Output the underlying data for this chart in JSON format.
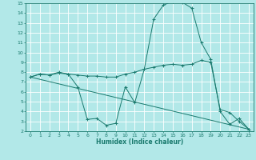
{
  "xlabel": "Humidex (Indice chaleur)",
  "ylabel": "",
  "bg_color": "#b2e8e8",
  "grid_color": "#ffffff",
  "line_color": "#1a7a6e",
  "xlim": [
    -0.5,
    23.5
  ],
  "ylim": [
    2,
    15
  ],
  "xticks": [
    0,
    1,
    2,
    3,
    4,
    5,
    6,
    7,
    8,
    9,
    10,
    11,
    12,
    13,
    14,
    15,
    16,
    17,
    18,
    19,
    20,
    21,
    22,
    23
  ],
  "yticks": [
    2,
    3,
    4,
    5,
    6,
    7,
    8,
    9,
    10,
    11,
    12,
    13,
    14,
    15
  ],
  "line1_x": [
    0,
    1,
    2,
    3,
    4,
    5,
    6,
    7,
    8,
    9,
    10,
    11,
    12,
    13,
    14,
    15,
    16,
    17,
    18,
    19,
    20,
    21,
    22,
    23
  ],
  "line1_y": [
    7.5,
    7.8,
    7.7,
    8.0,
    7.8,
    6.5,
    3.2,
    3.3,
    2.6,
    2.8,
    6.5,
    4.9,
    8.3,
    13.4,
    14.8,
    15.2,
    15.1,
    14.5,
    11.0,
    9.3,
    4.0,
    2.7,
    3.3,
    2.2
  ],
  "line2_x": [
    0,
    1,
    2,
    3,
    4,
    5,
    6,
    7,
    8,
    9,
    10,
    11,
    12,
    13,
    14,
    15,
    16,
    17,
    18,
    19,
    20,
    21,
    22,
    23
  ],
  "line2_y": [
    7.5,
    7.8,
    7.7,
    7.9,
    7.8,
    7.7,
    7.6,
    7.6,
    7.5,
    7.5,
    7.8,
    8.0,
    8.3,
    8.5,
    8.7,
    8.8,
    8.7,
    8.8,
    9.2,
    9.0,
    4.2,
    3.9,
    3.0,
    2.2
  ],
  "line3_x": [
    0,
    23
  ],
  "line3_y": [
    7.5,
    2.2
  ]
}
